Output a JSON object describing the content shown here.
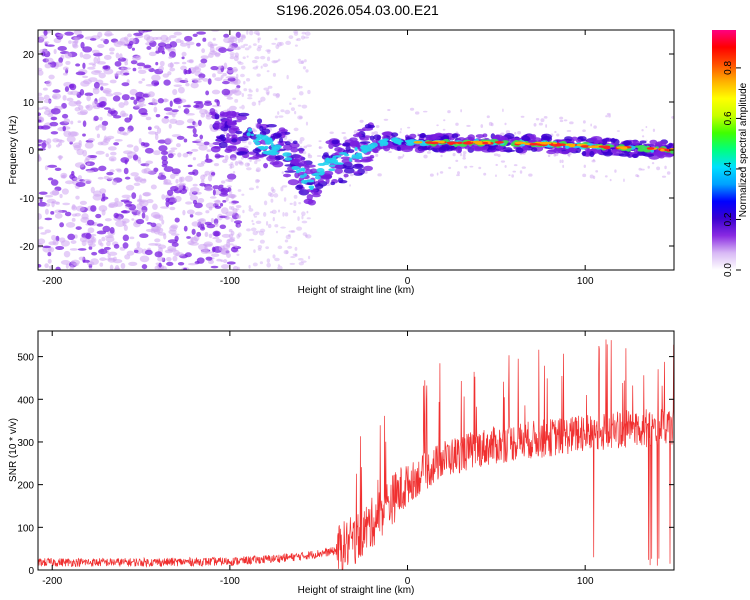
{
  "title": "S196.2026.054.03.00.E21",
  "colors": {
    "series_line": "#f03030",
    "blob_purple": "#7a1fe0",
    "blob_light": "#cfa6f2",
    "ridge_cyan": "#22d3ee",
    "ridge_green": "#3fe04f",
    "ridge_red": "#ff1f1f"
  },
  "chart_data": [
    {
      "type": "heatmap",
      "name": "spectrogram",
      "xlabel": "Height of straight line (km)",
      "ylabel": "Frequency (Hz)",
      "xlim": [
        -208,
        150
      ],
      "ylim": [
        -25,
        25
      ],
      "xticks": [
        -200,
        -100,
        0,
        100
      ],
      "yticks": [
        -20,
        -10,
        0,
        10,
        20
      ],
      "ridge": {
        "description_points": [
          [
            -105,
            4
          ],
          [
            -90,
            3
          ],
          [
            -80,
            1
          ],
          [
            -70,
            0
          ],
          [
            -60,
            -4
          ],
          [
            -55,
            -7
          ],
          [
            -45,
            -3
          ],
          [
            -35,
            -2
          ],
          [
            -20,
            1
          ],
          [
            -10,
            2
          ],
          [
            0,
            1.5
          ],
          [
            20,
            1.5
          ],
          [
            50,
            1.5
          ],
          [
            80,
            1.2
          ],
          [
            100,
            0.8
          ],
          [
            120,
            0.5
          ],
          [
            150,
            0
          ]
        ]
      },
      "colorbar": {
        "label": "Normalized spectral amplitude",
        "range": [
          0.0,
          0.95
        ],
        "ticks": [
          "0.0",
          "0.2",
          "0.4",
          "0.6",
          "0.8"
        ],
        "tick_values": [
          0.0,
          0.2,
          0.4,
          0.6,
          0.8
        ],
        "stops": [
          "#ffffff",
          "#d8b8f5",
          "#8a2be2",
          "#3a00d0",
          "#0000ff",
          "#00a0ff",
          "#00e0ff",
          "#00ff80",
          "#40ff00",
          "#c8ff00",
          "#ffff00",
          "#ffb000",
          "#ff5000",
          "#ff0000",
          "#ff0080"
        ]
      }
    },
    {
      "type": "line",
      "name": "snr",
      "xlabel": "Height of straight line (km)",
      "ylabel": "SNR (10 * v/v)",
      "xlim": [
        -208,
        150
      ],
      "ylim": [
        0,
        560
      ],
      "xticks": [
        -200,
        -100,
        0,
        100
      ],
      "yticks": [
        0,
        100,
        200,
        300,
        400,
        500
      ],
      "trend": {
        "x": [
          -208,
          -150,
          -100,
          -80,
          -60,
          -40,
          -30,
          -20,
          -10,
          0,
          10,
          20,
          40,
          60,
          80,
          100,
          120,
          150
        ],
        "y": [
          18,
          18,
          20,
          25,
          32,
          45,
          70,
          110,
          160,
          200,
          230,
          260,
          285,
          300,
          310,
          320,
          330,
          335
        ]
      }
    }
  ]
}
